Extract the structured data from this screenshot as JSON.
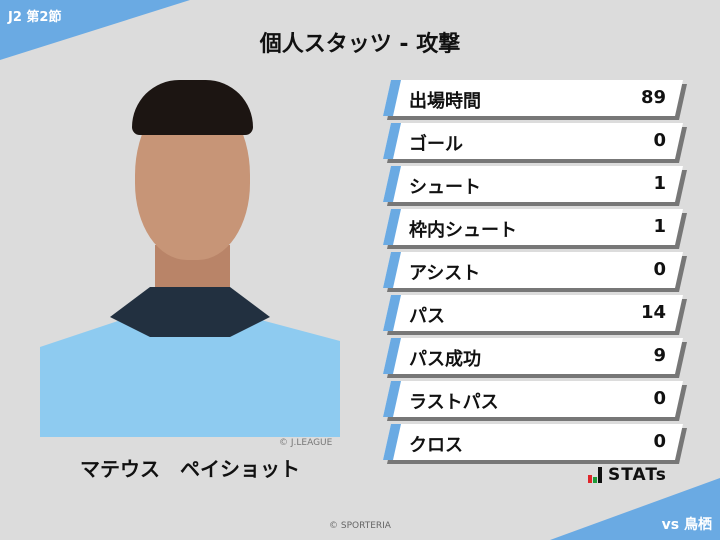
{
  "header": {
    "round": "J2 第2節",
    "title": "個人スタッツ - 攻撃",
    "opponent": "vs 鳥栖"
  },
  "player": {
    "name": "マテウス　ペイショット",
    "photo_credit": "© J.LEAGUE"
  },
  "stats": [
    {
      "label": "出場時間",
      "value": "89"
    },
    {
      "label": "ゴール",
      "value": "0"
    },
    {
      "label": "シュート",
      "value": "1"
    },
    {
      "label": "枠内シュート",
      "value": "1"
    },
    {
      "label": "アシスト",
      "value": "0"
    },
    {
      "label": "パス",
      "value": "14"
    },
    {
      "label": "パス成功",
      "value": "9"
    },
    {
      "label": "ラストパス",
      "value": "0"
    },
    {
      "label": "クロス",
      "value": "0"
    }
  ],
  "brand": {
    "logo_text": "STATs",
    "copyright": "© SPORTERIA"
  },
  "colors": {
    "accent": "#6aaae3",
    "background": "#dcdcdc",
    "logo_red": "#e0262b",
    "logo_green": "#1f9c3a"
  }
}
